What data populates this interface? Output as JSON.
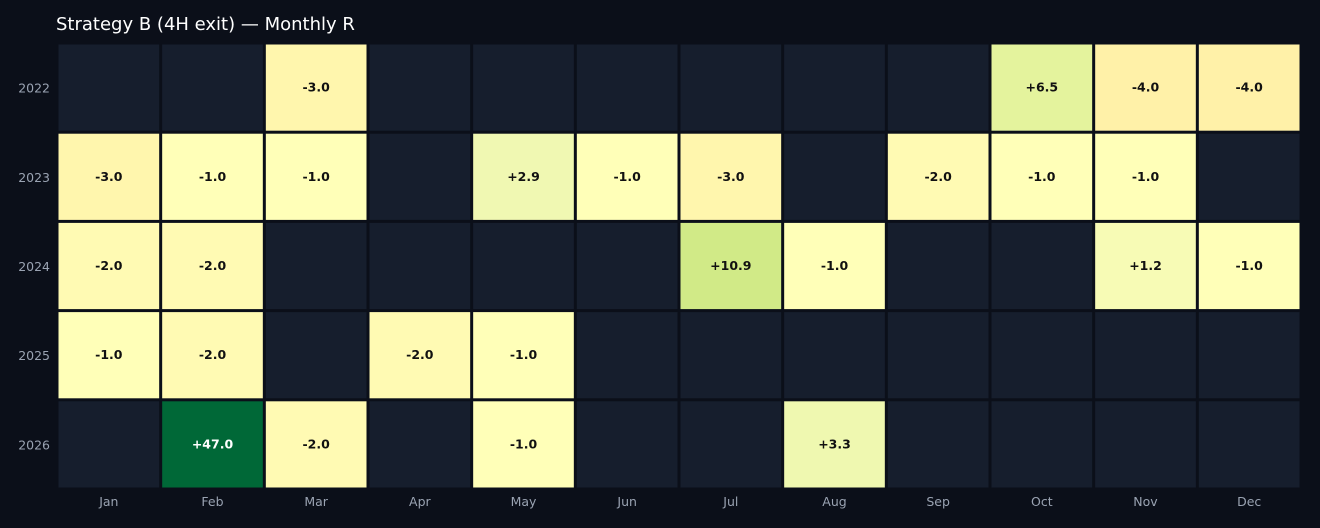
{
  "chart_data": {
    "type": "heatmap",
    "title": "Strategy B (4H exit) — Monthly R",
    "xlabel": "",
    "ylabel": "",
    "x_categories": [
      "Jan",
      "Feb",
      "Mar",
      "Apr",
      "May",
      "Jun",
      "Jul",
      "Aug",
      "Sep",
      "Oct",
      "Nov",
      "Dec"
    ],
    "y_categories": [
      "2022",
      "2023",
      "2024",
      "2025",
      "2026"
    ],
    "values": [
      [
        null,
        null,
        -3.0,
        null,
        null,
        null,
        null,
        null,
        null,
        6.5,
        -4.0,
        -4.0
      ],
      [
        -3.0,
        -1.0,
        -1.0,
        null,
        2.9,
        -1.0,
        -3.0,
        null,
        -2.0,
        -1.0,
        -1.0,
        null
      ],
      [
        -2.0,
        -2.0,
        null,
        null,
        null,
        null,
        10.9,
        -1.0,
        null,
        null,
        1.2,
        -1.0
      ],
      [
        -1.0,
        -2.0,
        null,
        -2.0,
        -1.0,
        null,
        null,
        null,
        null,
        null,
        null,
        null
      ],
      [
        null,
        47.0,
        -2.0,
        null,
        -1.0,
        null,
        null,
        3.3,
        null,
        null,
        null,
        null
      ]
    ],
    "labels": [
      [
        "",
        "",
        "-3.0",
        "",
        "",
        "",
        "",
        "",
        "",
        "+6.5",
        "-4.0",
        "-4.0"
      ],
      [
        "-3.0",
        "-1.0",
        "-1.0",
        "",
        "+2.9",
        "-1.0",
        "-3.0",
        "",
        "-2.0",
        "-1.0",
        "-1.0",
        ""
      ],
      [
        "-2.0",
        "-2.0",
        "",
        "",
        "",
        "",
        "+10.9",
        "-1.0",
        "",
        "",
        "+1.2",
        "-1.0"
      ],
      [
        "-1.0",
        "-2.0",
        "",
        "-2.0",
        "-1.0",
        "",
        "",
        "",
        "",
        "",
        "",
        ""
      ],
      [
        "",
        "+47.0",
        "-2.0",
        "",
        "-1.0",
        "",
        "",
        "+3.3",
        "",
        "",
        "",
        ""
      ]
    ],
    "colormap": "yellow-to-green",
    "empty_color": "#161e2d",
    "background_color": "#0b0f19",
    "grid": false,
    "legend": "none"
  }
}
